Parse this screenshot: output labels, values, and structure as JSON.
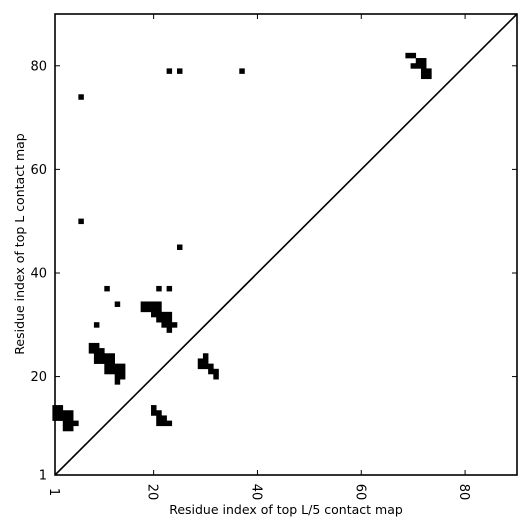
{
  "chart_data": {
    "type": "heatmap",
    "xlabel": "Residue index of top L/5 contact map",
    "ylabel": "Residue index of top L contact map",
    "xlim": [
      1,
      90
    ],
    "ylim": [
      1,
      90
    ],
    "xticks": [
      "1",
      "20",
      "40",
      "60",
      "80"
    ],
    "yticks": [
      "1",
      "20",
      "40",
      "60",
      "80"
    ],
    "xtick_values": [
      1,
      20,
      40,
      60,
      80
    ],
    "ytick_values": [
      1,
      20,
      40,
      60,
      80
    ],
    "diagonal": true,
    "cell_color": "#000000",
    "upper_contacts": [
      [
        69,
        82
      ],
      [
        70,
        82
      ],
      [
        71,
        81
      ],
      [
        72,
        81
      ],
      [
        70,
        80
      ],
      [
        71,
        80
      ],
      [
        72,
        80
      ],
      [
        72,
        79
      ],
      [
        73,
        79
      ],
      [
        72,
        78
      ],
      [
        73,
        78
      ],
      [
        23,
        79
      ],
      [
        25,
        79
      ],
      [
        37,
        79
      ],
      [
        6,
        74
      ],
      [
        6,
        50
      ],
      [
        25,
        45
      ],
      [
        11,
        37
      ],
      [
        21,
        37
      ],
      [
        23,
        37
      ],
      [
        13,
        34
      ],
      [
        18,
        33
      ],
      [
        19,
        33
      ],
      [
        20,
        33
      ],
      [
        21,
        33
      ],
      [
        18,
        34
      ],
      [
        19,
        34
      ],
      [
        20,
        34
      ],
      [
        21,
        34
      ],
      [
        20,
        32
      ],
      [
        21,
        32
      ],
      [
        22,
        32
      ],
      [
        23,
        32
      ],
      [
        21,
        31
      ],
      [
        22,
        31
      ],
      [
        23,
        31
      ],
      [
        22,
        30
      ],
      [
        23,
        30
      ],
      [
        24,
        30
      ],
      [
        23,
        29
      ],
      [
        9,
        30
      ]
    ],
    "lower_contacts": [
      [
        8,
        26
      ],
      [
        9,
        26
      ],
      [
        8,
        25
      ],
      [
        9,
        25
      ],
      [
        10,
        25
      ],
      [
        9,
        24
      ],
      [
        10,
        24
      ],
      [
        11,
        24
      ],
      [
        12,
        24
      ],
      [
        9,
        23
      ],
      [
        10,
        23
      ],
      [
        11,
        23
      ],
      [
        12,
        23
      ],
      [
        11,
        22
      ],
      [
        12,
        22
      ],
      [
        13,
        22
      ],
      [
        14,
        22
      ],
      [
        11,
        21
      ],
      [
        12,
        21
      ],
      [
        13,
        21
      ],
      [
        14,
        21
      ],
      [
        13,
        20
      ],
      [
        14,
        20
      ],
      [
        13,
        19
      ],
      [
        30,
        24
      ],
      [
        29,
        23
      ],
      [
        30,
        23
      ],
      [
        29,
        22
      ],
      [
        30,
        22
      ],
      [
        31,
        22
      ],
      [
        31,
        21
      ],
      [
        32,
        21
      ],
      [
        32,
        20
      ],
      [
        1,
        14
      ],
      [
        2,
        14
      ],
      [
        1,
        13
      ],
      [
        2,
        13
      ],
      [
        3,
        13
      ],
      [
        4,
        13
      ],
      [
        1,
        12
      ],
      [
        2,
        12
      ],
      [
        3,
        12
      ],
      [
        4,
        12
      ],
      [
        3,
        11
      ],
      [
        4,
        11
      ],
      [
        5,
        11
      ],
      [
        3,
        10
      ],
      [
        4,
        10
      ],
      [
        20,
        14
      ],
      [
        20,
        13
      ],
      [
        21,
        13
      ],
      [
        21,
        12
      ],
      [
        22,
        12
      ],
      [
        21,
        11
      ],
      [
        22,
        11
      ],
      [
        23,
        11
      ]
    ]
  }
}
